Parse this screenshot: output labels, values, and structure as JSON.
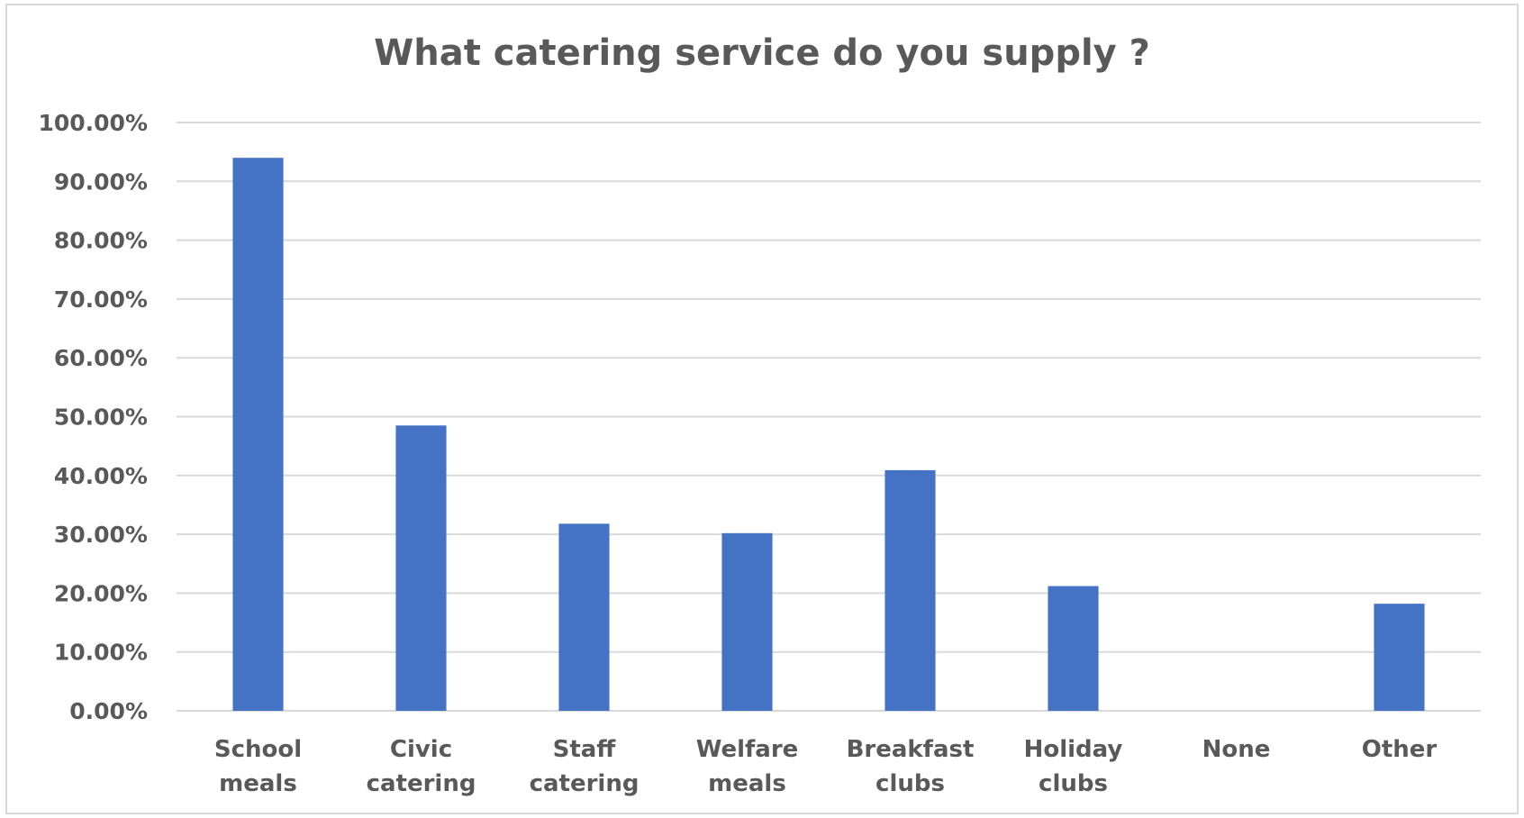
{
  "chart_data": {
    "type": "bar",
    "title": "What catering service do you supply ?",
    "xlabel": "",
    "ylabel": "",
    "categories": [
      [
        "School",
        "meals"
      ],
      [
        "Civic",
        "catering"
      ],
      [
        "Staff",
        "catering"
      ],
      [
        "Welfare",
        "meals"
      ],
      [
        "Breakfast",
        "clubs"
      ],
      [
        "Holiday",
        "clubs"
      ],
      [
        "None"
      ],
      [
        "Other"
      ]
    ],
    "values": [
      0.94,
      0.485,
      0.318,
      0.302,
      0.409,
      0.212,
      0.0,
      0.182
    ],
    "ylim": [
      0,
      1
    ],
    "yticks": [
      {
        "value": 0.0,
        "label": "0.00%"
      },
      {
        "value": 0.1,
        "label": "10.00%"
      },
      {
        "value": 0.2,
        "label": "20.00%"
      },
      {
        "value": 0.3,
        "label": "30.00%"
      },
      {
        "value": 0.4,
        "label": "40.00%"
      },
      {
        "value": 0.5,
        "label": "50.00%"
      },
      {
        "value": 0.6,
        "label": "60.00%"
      },
      {
        "value": 0.7,
        "label": "70.00%"
      },
      {
        "value": 0.8,
        "label": "80.00%"
      },
      {
        "value": 0.9,
        "label": "90.00%"
      },
      {
        "value": 1.0,
        "label": "100.00%"
      }
    ],
    "grid": true,
    "legend": "none",
    "bar_color": "#4472c4",
    "grid_color": "#d9d9d9"
  }
}
